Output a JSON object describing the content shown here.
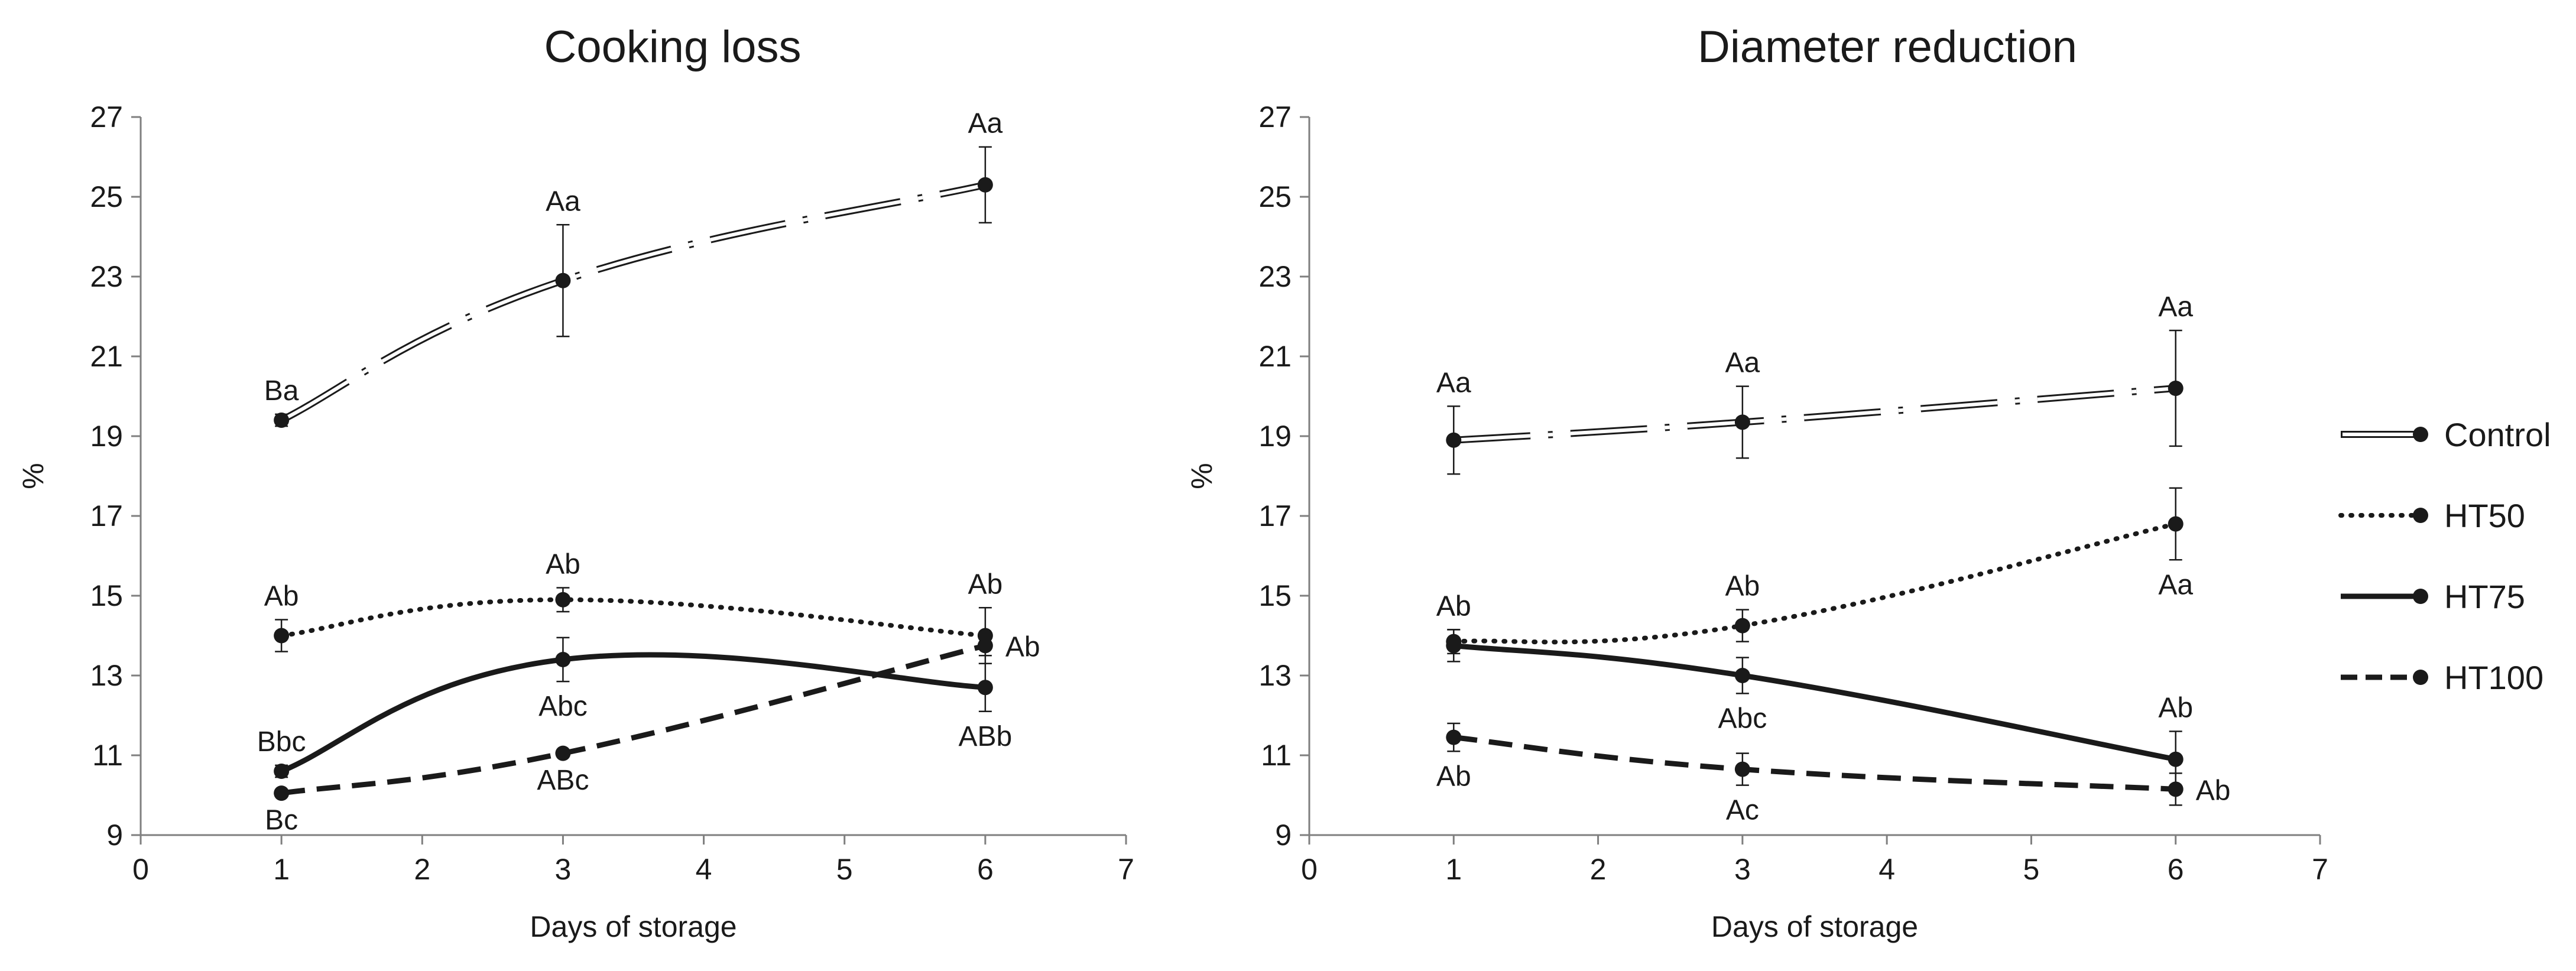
{
  "chart_data": [
    {
      "type": "line",
      "title": "Cooking loss",
      "xlabel": "Days of storage",
      "ylabel": "%",
      "xlim": [
        0,
        7
      ],
      "ylim": [
        9,
        27
      ],
      "x_ticks": [
        "0",
        "1",
        "2",
        "3",
        "4",
        "5",
        "6",
        "7"
      ],
      "y_ticks": [
        "9",
        "11",
        "13",
        "15",
        "17",
        "19",
        "21",
        "23",
        "25",
        "27"
      ],
      "x": [
        1,
        3,
        6
      ],
      "series": [
        {
          "name": "Control",
          "values": [
            19.4,
            22.9,
            25.3
          ],
          "errors": [
            0.15,
            1.4,
            0.95
          ],
          "labels": [
            "Ba",
            "Aa",
            "Aa"
          ],
          "label_pos": [
            "above",
            "above",
            "above"
          ]
        },
        {
          "name": "HT50",
          "values": [
            14.0,
            14.9,
            14.0
          ],
          "errors": [
            0.4,
            0.3,
            0.7
          ],
          "labels": [
            "Ab",
            "Ab",
            "Ab"
          ],
          "label_pos": [
            "above",
            "above",
            "above"
          ]
        },
        {
          "name": "HT75",
          "values": [
            10.6,
            13.4,
            12.7
          ],
          "errors": [
            0.15,
            0.55,
            0.6
          ],
          "labels": [
            "Bbc",
            "Abc",
            "ABb"
          ],
          "label_pos": [
            "above",
            "below",
            "below"
          ]
        },
        {
          "name": "HT100",
          "values": [
            10.05,
            11.05,
            13.75
          ],
          "errors": [
            0.05,
            0.05,
            0.25
          ],
          "labels": [
            "Bc",
            "ABc",
            "Ab"
          ],
          "label_pos": [
            "below",
            "below",
            "right"
          ]
        }
      ]
    },
    {
      "type": "line",
      "title": "Diameter reduction",
      "xlabel": "Days of storage",
      "ylabel": "%",
      "xlim": [
        0,
        7
      ],
      "ylim": [
        9,
        27
      ],
      "x_ticks": [
        "0",
        "1",
        "2",
        "3",
        "4",
        "5",
        "6",
        "7"
      ],
      "y_ticks": [
        "9",
        "11",
        "13",
        "15",
        "17",
        "19",
        "21",
        "23",
        "25",
        "27"
      ],
      "x": [
        1,
        3,
        6
      ],
      "series": [
        {
          "name": "Control",
          "values": [
            18.9,
            19.35,
            20.2
          ],
          "errors": [
            0.85,
            0.9,
            1.45
          ],
          "labels": [
            "Aa",
            "Aa",
            "Aa"
          ],
          "label_pos": [
            "above",
            "above",
            "above"
          ]
        },
        {
          "name": "HT50",
          "values": [
            13.85,
            14.25,
            16.8
          ],
          "errors": [
            0.3,
            0.4,
            0.9
          ],
          "labels": [
            "Ab",
            "Ab",
            "Aa"
          ],
          "label_pos": [
            "above",
            "above",
            "below"
          ]
        },
        {
          "name": "HT75",
          "values": [
            13.75,
            13.0,
            10.9
          ],
          "errors": [
            0.4,
            0.45,
            0.7
          ],
          "labels": [
            "Ab",
            "Abc",
            "Ab"
          ],
          "label_pos": [
            "above",
            "below",
            "above"
          ]
        },
        {
          "name": "HT100",
          "values": [
            11.45,
            10.65,
            10.15
          ],
          "errors": [
            0.35,
            0.4,
            0.4
          ],
          "labels": [
            "Ab",
            "Ac",
            "Ab"
          ],
          "label_pos": [
            "below",
            "below",
            "right"
          ]
        }
      ]
    }
  ],
  "legend": {
    "entries": [
      "Control",
      "HT50",
      "HT75",
      "HT100"
    ],
    "styles": [
      "double-dashdot",
      "dotted",
      "solid",
      "dashed"
    ],
    "placement": "right"
  },
  "colors": {
    "ink": "#1a1a1a",
    "axis": "#7f7f7f",
    "background": "#ffffff"
  }
}
